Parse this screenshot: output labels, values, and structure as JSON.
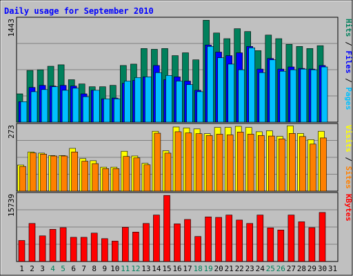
{
  "colors": {
    "background": "#c0c0c0",
    "frame_dark": "#808080",
    "hits": "#00805c",
    "files": "#0000ff",
    "pages": "#00c0ff",
    "visits": "#ffff00",
    "sites": "#ff8000",
    "kbytes": "#ff0000",
    "title": "#0000ff",
    "day_normal": "#000000",
    "day_weekend": "#00805c",
    "grid": "#808080"
  },
  "chart_data": {
    "type": "bar",
    "title": "Daily usage for September 2010",
    "categories": [
      "1",
      "2",
      "3",
      "4",
      "5",
      "6",
      "7",
      "8",
      "9",
      "10",
      "11",
      "12",
      "13",
      "14",
      "15",
      "16",
      "17",
      "18",
      "19",
      "20",
      "21",
      "22",
      "23",
      "24",
      "25",
      "26",
      "27",
      "28",
      "29",
      "30",
      "31"
    ],
    "weekend_days": [
      "4",
      "5",
      "11",
      "12",
      "18",
      "19",
      "25",
      "26"
    ],
    "panels": [
      {
        "id": "hits",
        "scale_label": "1443",
        "ymax": 1443,
        "legend": [
          {
            "text": "Hits",
            "color": "#00805c"
          },
          {
            "text": "Files",
            "color": "#0000ff"
          },
          {
            "text": "Pages",
            "color": "#00c0ff"
          }
        ],
        "series": [
          {
            "name": "Hits",
            "values": [
              400,
              730,
              740,
              790,
              810,
              600,
              540,
              500,
              500,
              520,
              800,
              820,
              1040,
              1030,
              1040,
              940,
              980,
              880,
              1440,
              1260,
              1180,
              1320,
              1280,
              1010,
              1230,
              1180,
              1100,
              1070,
              1040,
              1080,
              0
            ]
          },
          {
            "name": "Files",
            "values": [
              290,
              490,
              520,
              510,
              520,
              510,
              400,
              450,
              330,
              340,
              550,
              590,
              640,
              800,
              600,
              640,
              580,
              450,
              1090,
              990,
              940,
              980,
              1070,
              750,
              900,
              750,
              780,
              760,
              750,
              800,
              0
            ]
          },
          {
            "name": "Pages",
            "values": [
              290,
              430,
              460,
              500,
              450,
              480,
              360,
              450,
              330,
              330,
              580,
              630,
              640,
              700,
              660,
              580,
              530,
              430,
              1070,
              910,
              820,
              740,
              1050,
              700,
              880,
              720,
              740,
              750,
              740,
              780,
              0
            ]
          }
        ]
      },
      {
        "id": "visits",
        "scale_label": "273",
        "ymax": 273,
        "legend": [
          {
            "text": "Visits",
            "color": "#ffff00"
          },
          {
            "text": "/",
            "color": "#000000"
          },
          {
            "text": "Sites",
            "color": "#ff8000"
          }
        ],
        "series": [
          {
            "name": "Visits",
            "values": [
              110,
              165,
              160,
              150,
              150,
              180,
              137,
              128,
              101,
              101,
              168,
              148,
              117,
              252,
              170,
              270,
              266,
              262,
              242,
              268,
              268,
              273,
              268,
              250,
              254,
              231,
              275,
              243,
              217,
              252,
              0
            ]
          },
          {
            "name": "Sites",
            "values": [
              104,
              161,
              156,
              148,
              148,
              165,
              126,
              116,
              95,
              95,
              146,
              140,
              111,
              244,
              160,
              250,
              245,
              242,
              234,
              240,
              237,
              249,
              240,
              234,
              232,
              220,
              243,
              230,
              198,
              224,
              0
            ]
          }
        ]
      },
      {
        "id": "kbytes",
        "scale_label": "15739",
        "ymax": 15739,
        "legend": [
          {
            "text": "KBytes",
            "color": "#ff0000"
          }
        ],
        "series": [
          {
            "name": "KBytes",
            "values": [
              5000,
              9050,
              6100,
              7650,
              8050,
              5750,
              5750,
              6750,
              5450,
              4850,
              8150,
              7000,
              9050,
              11050,
              15700,
              8950,
              10000,
              5950,
              10600,
              10500,
              11050,
              9850,
              9050,
              11050,
              8000,
              7500,
              11050,
              9450,
              8050,
              11650,
              0
            ]
          }
        ]
      }
    ]
  }
}
